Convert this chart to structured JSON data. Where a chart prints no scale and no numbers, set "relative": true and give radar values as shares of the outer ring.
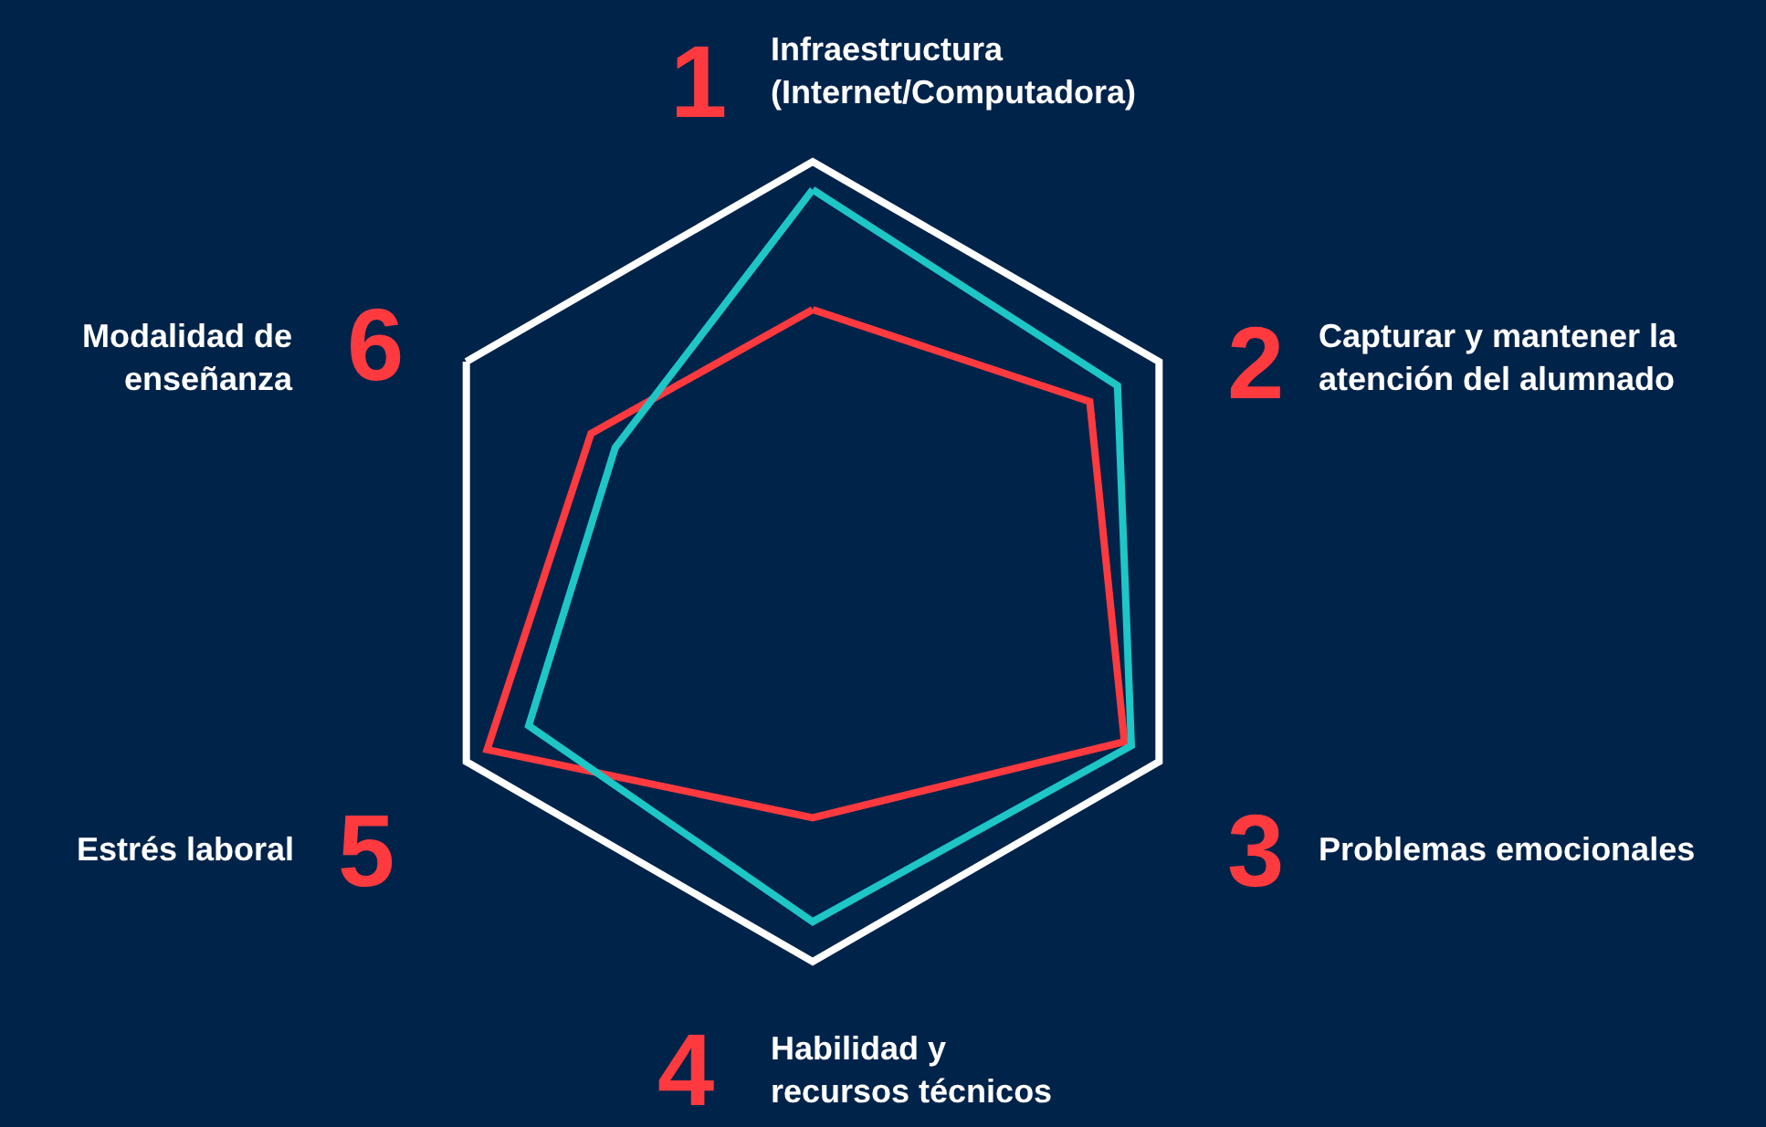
{
  "chart_data": {
    "type": "radar",
    "relative": true,
    "categories": [
      "Infraestructura (Internet/Computadora)",
      "Capturar y mantener la atención del alumnado",
      "Problemas emocionales",
      "Habilidad y recursos técnicos",
      "Estrés laboral",
      "Modalidad de enseñanza"
    ],
    "series": [
      {
        "color": "#ff3a3f",
        "values": [
          0.63,
          0.8,
          0.9,
          0.64,
          0.94,
          0.64
        ]
      },
      {
        "color": "#1ec6c6",
        "values": [
          0.93,
          0.88,
          0.92,
          0.9,
          0.82,
          0.57
        ]
      }
    ],
    "annotations": [
      "1",
      "2",
      "3",
      "4",
      "5",
      "6"
    ],
    "marker": "none",
    "line_style": "solid"
  }
}
